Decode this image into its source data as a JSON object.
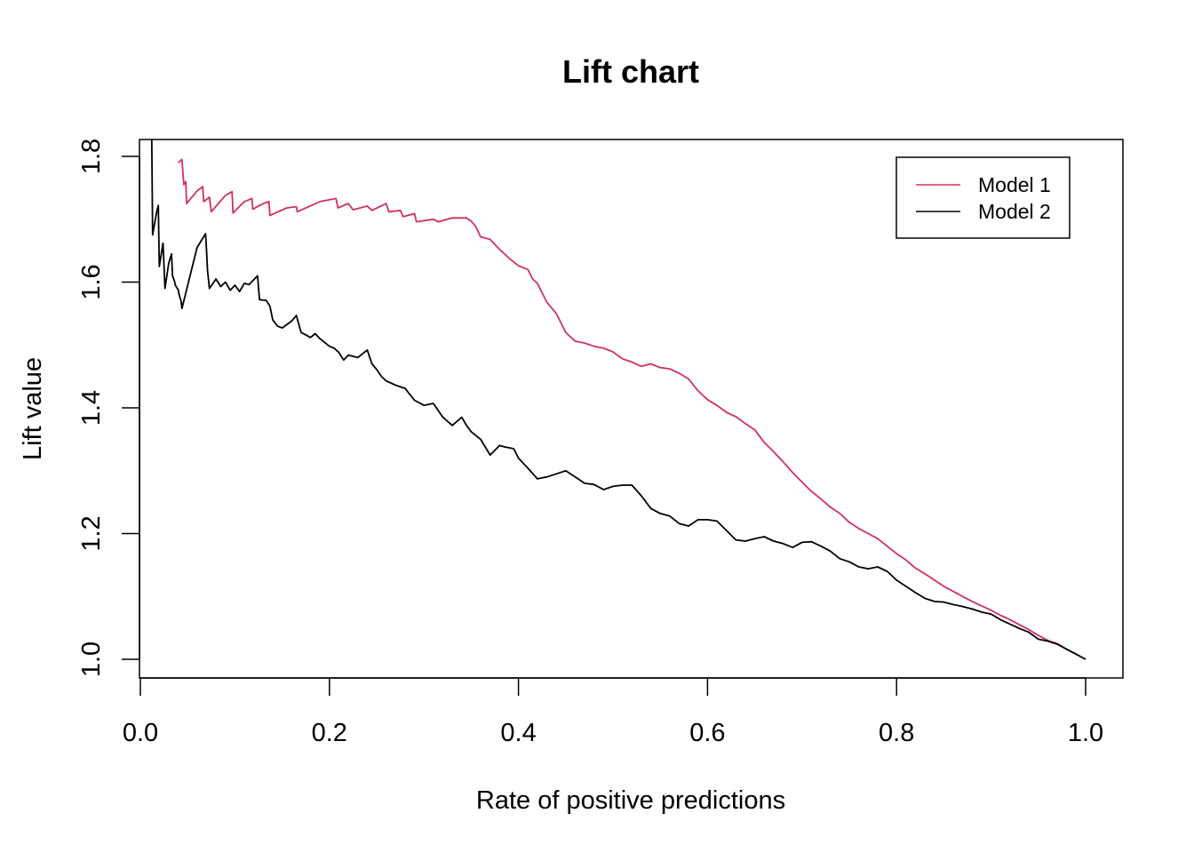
{
  "chart_data": {
    "type": "line",
    "title": "Lift chart",
    "xlabel": "Rate of positive predictions",
    "ylabel": "Lift value",
    "xlim": [
      0.0,
      1.0
    ],
    "ylim": [
      1.0,
      1.8
    ],
    "xticks": [
      "0.0",
      "0.2",
      "0.4",
      "0.6",
      "0.8",
      "1.0"
    ],
    "yticks": [
      "1.0",
      "1.2",
      "1.4",
      "1.6",
      "1.8"
    ],
    "grid": false,
    "legend": {
      "position": "top-right"
    },
    "series": [
      {
        "name": "Model 1",
        "color": "#d0325a",
        "points": [
          [
            0.04,
            1.79
          ],
          [
            0.044,
            1.795
          ],
          [
            0.046,
            1.755
          ],
          [
            0.048,
            1.76
          ],
          [
            0.049,
            1.725
          ],
          [
            0.06,
            1.745
          ],
          [
            0.066,
            1.752
          ],
          [
            0.067,
            1.728
          ],
          [
            0.073,
            1.735
          ],
          [
            0.075,
            1.712
          ],
          [
            0.09,
            1.738
          ],
          [
            0.097,
            1.744
          ],
          [
            0.098,
            1.71
          ],
          [
            0.11,
            1.728
          ],
          [
            0.118,
            1.733
          ],
          [
            0.119,
            1.716
          ],
          [
            0.13,
            1.725
          ],
          [
            0.136,
            1.728
          ],
          [
            0.137,
            1.706
          ],
          [
            0.155,
            1.718
          ],
          [
            0.165,
            1.72
          ],
          [
            0.166,
            1.712
          ],
          [
            0.19,
            1.728
          ],
          [
            0.207,
            1.733
          ],
          [
            0.209,
            1.718
          ],
          [
            0.22,
            1.725
          ],
          [
            0.225,
            1.715
          ],
          [
            0.24,
            1.721
          ],
          [
            0.245,
            1.714
          ],
          [
            0.26,
            1.725
          ],
          [
            0.263,
            1.712
          ],
          [
            0.275,
            1.714
          ],
          [
            0.278,
            1.704
          ],
          [
            0.29,
            1.709
          ],
          [
            0.292,
            1.696
          ],
          [
            0.31,
            1.7
          ],
          [
            0.315,
            1.696
          ],
          [
            0.33,
            1.702
          ],
          [
            0.345,
            1.702
          ],
          [
            0.35,
            1.697
          ],
          [
            0.355,
            1.688
          ],
          [
            0.36,
            1.672
          ],
          [
            0.37,
            1.668
          ],
          [
            0.38,
            1.652
          ],
          [
            0.39,
            1.638
          ],
          [
            0.4,
            1.626
          ],
          [
            0.41,
            1.62
          ],
          [
            0.415,
            1.605
          ],
          [
            0.42,
            1.598
          ],
          [
            0.43,
            1.568
          ],
          [
            0.44,
            1.55
          ],
          [
            0.45,
            1.52
          ],
          [
            0.46,
            1.506
          ],
          [
            0.47,
            1.503
          ],
          [
            0.48,
            1.498
          ],
          [
            0.49,
            1.495
          ],
          [
            0.5,
            1.489
          ],
          [
            0.51,
            1.478
          ],
          [
            0.52,
            1.473
          ],
          [
            0.53,
            1.466
          ],
          [
            0.54,
            1.47
          ],
          [
            0.55,
            1.464
          ],
          [
            0.56,
            1.462
          ],
          [
            0.57,
            1.455
          ],
          [
            0.58,
            1.446
          ],
          [
            0.59,
            1.427
          ],
          [
            0.6,
            1.413
          ],
          [
            0.61,
            1.404
          ],
          [
            0.62,
            1.393
          ],
          [
            0.63,
            1.386
          ],
          [
            0.64,
            1.375
          ],
          [
            0.65,
            1.365
          ],
          [
            0.66,
            1.345
          ],
          [
            0.67,
            1.33
          ],
          [
            0.68,
            1.314
          ],
          [
            0.69,
            1.297
          ],
          [
            0.7,
            1.282
          ],
          [
            0.71,
            1.267
          ],
          [
            0.72,
            1.255
          ],
          [
            0.73,
            1.242
          ],
          [
            0.74,
            1.232
          ],
          [
            0.75,
            1.218
          ],
          [
            0.76,
            1.208
          ],
          [
            0.77,
            1.2
          ],
          [
            0.78,
            1.192
          ],
          [
            0.79,
            1.18
          ],
          [
            0.8,
            1.168
          ],
          [
            0.81,
            1.158
          ],
          [
            0.82,
            1.145
          ],
          [
            0.83,
            1.136
          ],
          [
            0.84,
            1.126
          ],
          [
            0.85,
            1.116
          ],
          [
            0.86,
            1.108
          ],
          [
            0.87,
            1.1
          ],
          [
            0.88,
            1.092
          ],
          [
            0.89,
            1.085
          ],
          [
            0.9,
            1.078
          ],
          [
            0.91,
            1.07
          ],
          [
            0.92,
            1.063
          ],
          [
            0.93,
            1.055
          ],
          [
            0.94,
            1.047
          ],
          [
            0.95,
            1.038
          ],
          [
            0.96,
            1.03
          ],
          [
            0.97,
            1.025
          ],
          [
            0.98,
            1.016
          ],
          [
            0.99,
            1.008
          ],
          [
            1.0,
            1.0
          ]
        ]
      },
      {
        "name": "Model 2",
        "color": "#000000",
        "points": [
          [
            0.012,
            1.83
          ],
          [
            0.013,
            1.675
          ],
          [
            0.017,
            1.71
          ],
          [
            0.019,
            1.722
          ],
          [
            0.02,
            1.625
          ],
          [
            0.024,
            1.662
          ],
          [
            0.026,
            1.59
          ],
          [
            0.03,
            1.63
          ],
          [
            0.033,
            1.645
          ],
          [
            0.034,
            1.61
          ],
          [
            0.036,
            1.602
          ],
          [
            0.037,
            1.595
          ],
          [
            0.039,
            1.59
          ],
          [
            0.04,
            1.588
          ],
          [
            0.041,
            1.58
          ],
          [
            0.043,
            1.57
          ],
          [
            0.044,
            1.558
          ],
          [
            0.06,
            1.655
          ],
          [
            0.069,
            1.677
          ],
          [
            0.07,
            1.65
          ],
          [
            0.071,
            1.62
          ],
          [
            0.073,
            1.59
          ],
          [
            0.08,
            1.605
          ],
          [
            0.085,
            1.593
          ],
          [
            0.09,
            1.6
          ],
          [
            0.095,
            1.587
          ],
          [
            0.1,
            1.595
          ],
          [
            0.105,
            1.585
          ],
          [
            0.11,
            1.598
          ],
          [
            0.115,
            1.596
          ],
          [
            0.124,
            1.61
          ],
          [
            0.126,
            1.572
          ],
          [
            0.133,
            1.571
          ],
          [
            0.137,
            1.562
          ],
          [
            0.14,
            1.54
          ],
          [
            0.145,
            1.53
          ],
          [
            0.15,
            1.527
          ],
          [
            0.16,
            1.538
          ],
          [
            0.165,
            1.547
          ],
          [
            0.17,
            1.52
          ],
          [
            0.18,
            1.512
          ],
          [
            0.185,
            1.518
          ],
          [
            0.19,
            1.51
          ],
          [
            0.2,
            1.498
          ],
          [
            0.205,
            1.495
          ],
          [
            0.21,
            1.488
          ],
          [
            0.215,
            1.476
          ],
          [
            0.22,
            1.484
          ],
          [
            0.23,
            1.48
          ],
          [
            0.24,
            1.492
          ],
          [
            0.245,
            1.47
          ],
          [
            0.25,
            1.461
          ],
          [
            0.255,
            1.45
          ],
          [
            0.26,
            1.443
          ],
          [
            0.27,
            1.436
          ],
          [
            0.28,
            1.431
          ],
          [
            0.29,
            1.412
          ],
          [
            0.3,
            1.404
          ],
          [
            0.31,
            1.407
          ],
          [
            0.32,
            1.385
          ],
          [
            0.33,
            1.372
          ],
          [
            0.34,
            1.385
          ],
          [
            0.345,
            1.372
          ],
          [
            0.35,
            1.362
          ],
          [
            0.36,
            1.35
          ],
          [
            0.37,
            1.325
          ],
          [
            0.38,
            1.34
          ],
          [
            0.385,
            1.338
          ],
          [
            0.395,
            1.335
          ],
          [
            0.4,
            1.32
          ],
          [
            0.41,
            1.304
          ],
          [
            0.42,
            1.287
          ],
          [
            0.43,
            1.29
          ],
          [
            0.44,
            1.295
          ],
          [
            0.45,
            1.3
          ],
          [
            0.46,
            1.29
          ],
          [
            0.47,
            1.28
          ],
          [
            0.48,
            1.278
          ],
          [
            0.49,
            1.27
          ],
          [
            0.5,
            1.275
          ],
          [
            0.51,
            1.277
          ],
          [
            0.52,
            1.277
          ],
          [
            0.53,
            1.26
          ],
          [
            0.54,
            1.24
          ],
          [
            0.55,
            1.232
          ],
          [
            0.56,
            1.228
          ],
          [
            0.57,
            1.216
          ],
          [
            0.58,
            1.212
          ],
          [
            0.59,
            1.222
          ],
          [
            0.6,
            1.222
          ],
          [
            0.61,
            1.22
          ],
          [
            0.62,
            1.205
          ],
          [
            0.63,
            1.19
          ],
          [
            0.64,
            1.188
          ],
          [
            0.65,
            1.192
          ],
          [
            0.66,
            1.195
          ],
          [
            0.67,
            1.188
          ],
          [
            0.68,
            1.184
          ],
          [
            0.69,
            1.178
          ],
          [
            0.7,
            1.186
          ],
          [
            0.71,
            1.187
          ],
          [
            0.72,
            1.18
          ],
          [
            0.73,
            1.172
          ],
          [
            0.74,
            1.16
          ],
          [
            0.75,
            1.155
          ],
          [
            0.76,
            1.147
          ],
          [
            0.77,
            1.144
          ],
          [
            0.78,
            1.147
          ],
          [
            0.79,
            1.14
          ],
          [
            0.8,
            1.126
          ],
          [
            0.81,
            1.116
          ],
          [
            0.82,
            1.106
          ],
          [
            0.83,
            1.097
          ],
          [
            0.84,
            1.092
          ],
          [
            0.85,
            1.091
          ],
          [
            0.86,
            1.087
          ],
          [
            0.87,
            1.084
          ],
          [
            0.88,
            1.08
          ],
          [
            0.89,
            1.075
          ],
          [
            0.9,
            1.072
          ],
          [
            0.91,
            1.063
          ],
          [
            0.92,
            1.056
          ],
          [
            0.93,
            1.049
          ],
          [
            0.94,
            1.043
          ],
          [
            0.95,
            1.032
          ],
          [
            0.96,
            1.029
          ],
          [
            0.97,
            1.024
          ],
          [
            0.98,
            1.016
          ],
          [
            0.99,
            1.008
          ],
          [
            1.0,
            1.0
          ]
        ]
      }
    ]
  }
}
